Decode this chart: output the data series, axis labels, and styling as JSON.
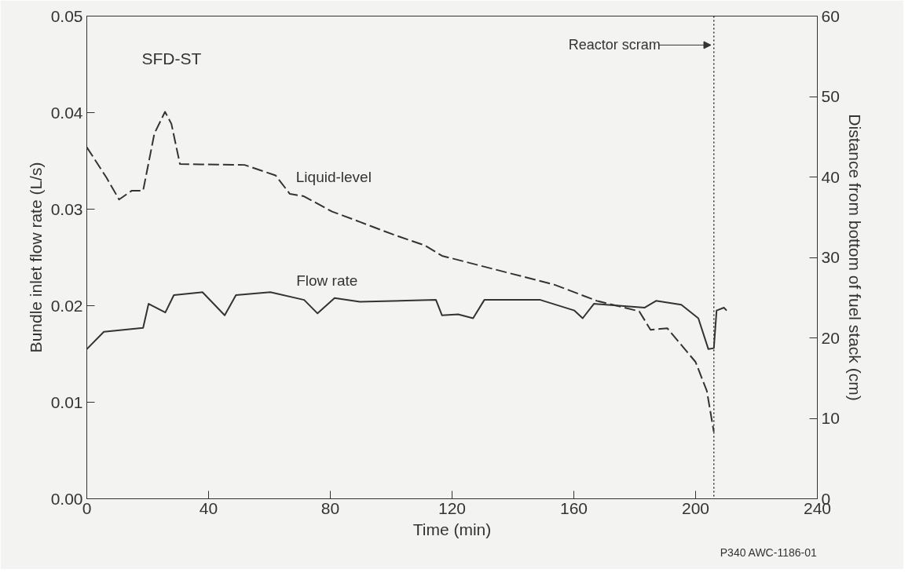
{
  "chart_data": {
    "type": "line",
    "xlabel": "Time (min)",
    "ylabel": "Bundle inlet flow rate (L/s)",
    "y2label": "Distance from bottom of fuel stack (cm)",
    "xlim": [
      0,
      240
    ],
    "xticks": [
      0,
      40,
      80,
      120,
      160,
      200,
      240
    ],
    "ylim": [
      0,
      0.05
    ],
    "yticks": [
      {
        "value": 0,
        "label": "0.00"
      },
      0.01,
      0.02,
      0.03,
      0.04,
      0.05
    ],
    "y2lim": [
      0,
      60
    ],
    "y2ticks": [
      0,
      10,
      20,
      30,
      40,
      50,
      60
    ],
    "grid": false,
    "series": [
      {
        "name": "Liquid-level",
        "color": "#333333",
        "axis": "y2",
        "line_style": "dashed",
        "x": [
          0,
          6.5,
          10.6,
          14.8,
          18.5,
          22.2,
          25.7,
          27.8,
          30.6,
          51.8,
          62,
          66.7,
          71.3,
          80.6,
          89.8,
          101,
          111,
          116.7,
          135.2,
          153.7,
          167.6,
          181.5,
          185.2,
          190.7,
          200,
          203.7,
          206
        ],
        "values": [
          43.7,
          39.9,
          37.2,
          38.3,
          38.3,
          45.4,
          48.1,
          46.6,
          41.6,
          41.5,
          40.2,
          37.9,
          37.6,
          35.7,
          34.4,
          32.8,
          31.5,
          30.2,
          28.4,
          26.6,
          24.6,
          23.3,
          21.0,
          21.2,
          17.0,
          13.4,
          8.3
        ]
      },
      {
        "name": "Flow rate",
        "color": "#333333",
        "line_style": "solid",
        "x": [
          0,
          5.6,
          18.5,
          20.3,
          25.8,
          28.6,
          38,
          45.3,
          49,
          60.3,
          71.4,
          75.8,
          81.4,
          89.7,
          114.7,
          116.7,
          122,
          126.9,
          130.6,
          149,
          160.2,
          162.9,
          166.6,
          183.3,
          187,
          195.3,
          200.9,
          204.2,
          206,
          206.9,
          209.3,
          210.2
        ],
        "values": [
          0.0155,
          0.0173,
          0.0177,
          0.0202,
          0.0193,
          0.0211,
          0.0214,
          0.019,
          0.0211,
          0.0214,
          0.0206,
          0.0192,
          0.0208,
          0.0204,
          0.0206,
          0.019,
          0.0191,
          0.0187,
          0.0206,
          0.0206,
          0.0195,
          0.0187,
          0.0202,
          0.0198,
          0.0205,
          0.0201,
          0.0187,
          0.0155,
          0.0156,
          0.0195,
          0.0198,
          0.0195
        ]
      }
    ],
    "ref_lines": [
      {
        "axis": "x",
        "value": 206,
        "label": "Reactor scram",
        "line_style": "dotted",
        "color": "#333333"
      }
    ],
    "annotations": [
      "SFD-ST",
      "P340 AWC-1186-01"
    ]
  }
}
